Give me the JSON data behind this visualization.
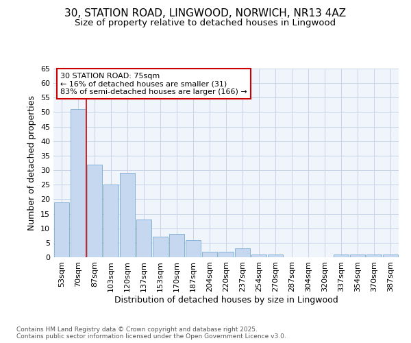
{
  "title_line1": "30, STATION ROAD, LINGWOOD, NORWICH, NR13 4AZ",
  "title_line2": "Size of property relative to detached houses in Lingwood",
  "xlabel": "Distribution of detached houses by size in Lingwood",
  "ylabel": "Number of detached properties",
  "categories": [
    "53sqm",
    "70sqm",
    "87sqm",
    "103sqm",
    "120sqm",
    "137sqm",
    "153sqm",
    "170sqm",
    "187sqm",
    "204sqm",
    "220sqm",
    "237sqm",
    "254sqm",
    "270sqm",
    "287sqm",
    "304sqm",
    "320sqm",
    "337sqm",
    "354sqm",
    "370sqm",
    "387sqm"
  ],
  "values": [
    19,
    51,
    32,
    25,
    29,
    13,
    7,
    8,
    6,
    2,
    2,
    3,
    1,
    1,
    0,
    0,
    0,
    1,
    1,
    1,
    1
  ],
  "bar_color": "#c5d8f0",
  "bar_edge_color": "#7aabd4",
  "vline_x": 1.5,
  "vline_color": "#cc0000",
  "annotation_text": "30 STATION ROAD: 75sqm\n← 16% of detached houses are smaller (31)\n83% of semi-detached houses are larger (166) →",
  "annotation_box_color": "#ffffff",
  "annotation_box_edge_color": "#cc0000",
  "ylim": [
    0,
    65
  ],
  "yticks": [
    0,
    5,
    10,
    15,
    20,
    25,
    30,
    35,
    40,
    45,
    50,
    55,
    60,
    65
  ],
  "bg_color": "#ffffff",
  "plot_bg_color": "#f0f4fb",
  "grid_color": "#c8d4e8",
  "footer_line1": "Contains HM Land Registry data © Crown copyright and database right 2025.",
  "footer_line2": "Contains public sector information licensed under the Open Government Licence v3.0.",
  "title_fontsize": 11,
  "subtitle_fontsize": 9.5,
  "axis_label_fontsize": 9,
  "tick_fontsize": 8,
  "annotation_fontsize": 8,
  "footer_fontsize": 6.5
}
